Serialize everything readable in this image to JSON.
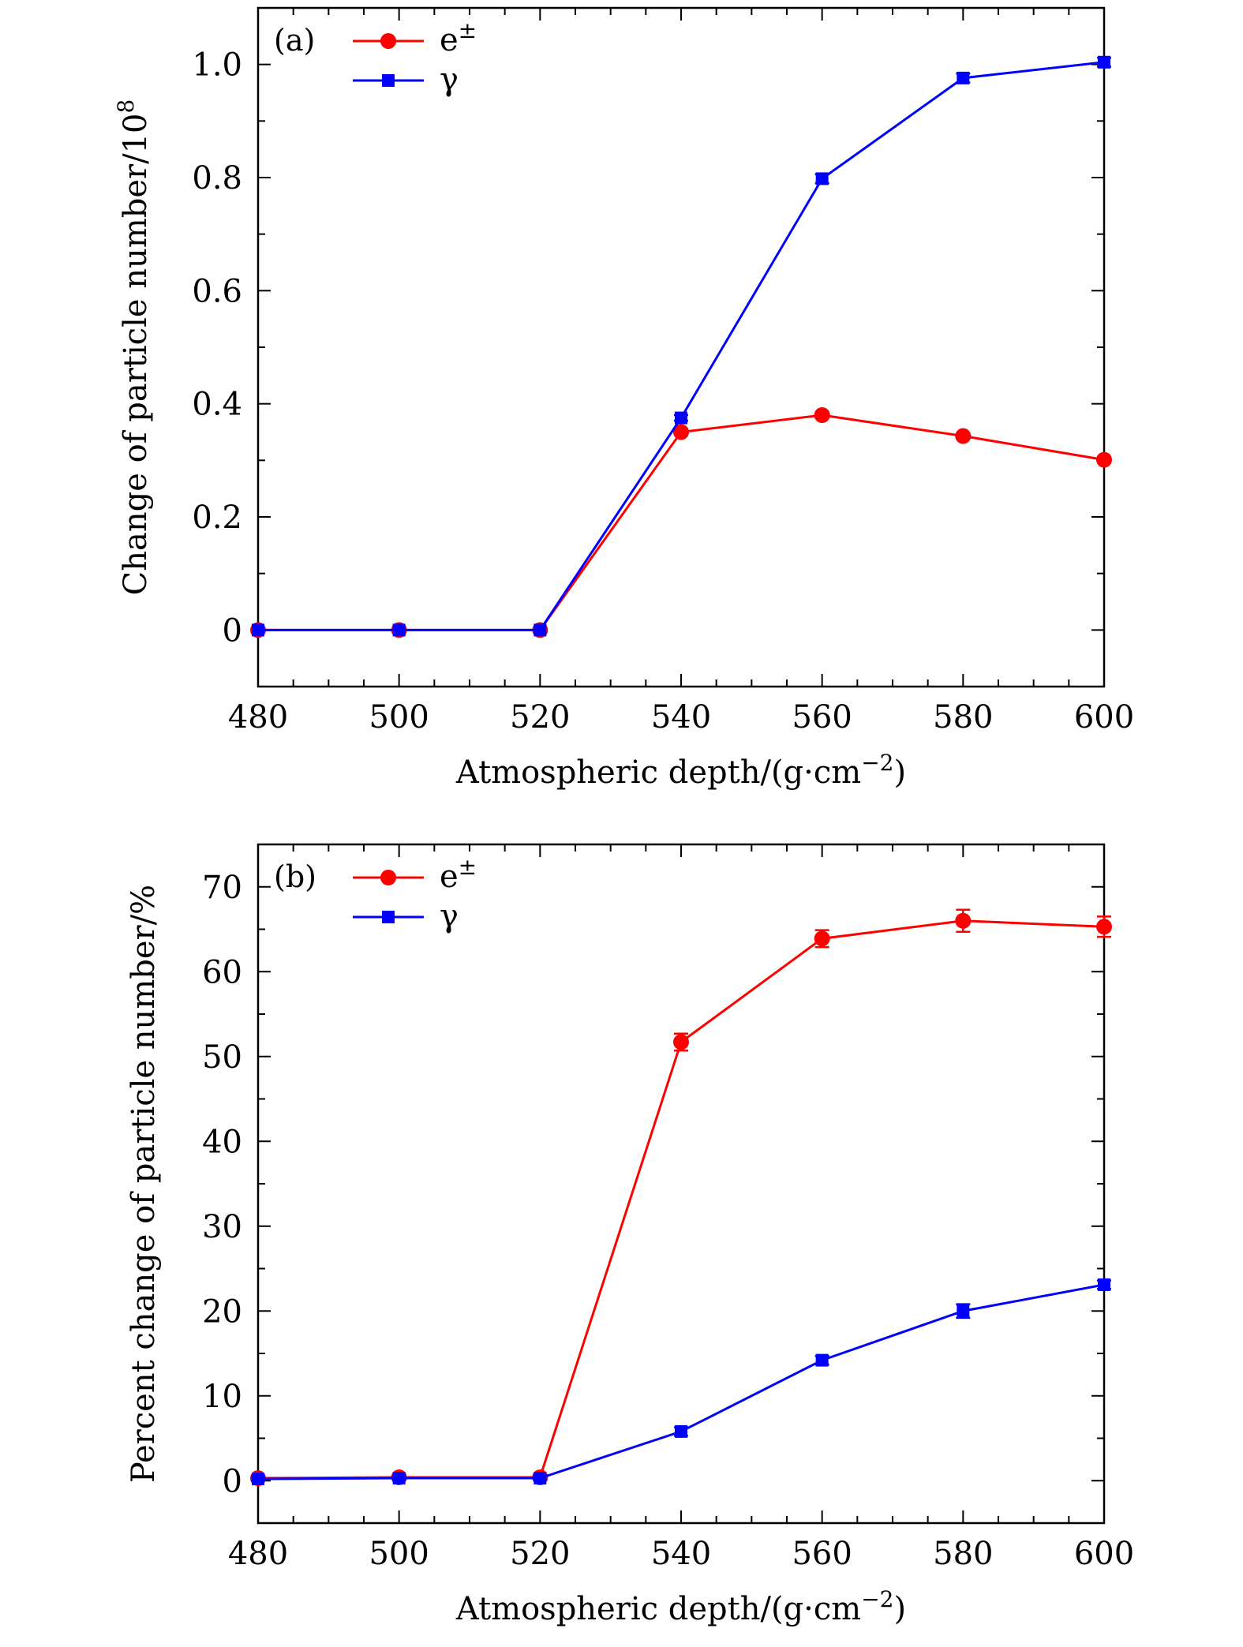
{
  "chart_data": [
    {
      "type": "line",
      "panel_label": "(a)",
      "xlabel": "Atmospheric depth/(g·cm",
      "xlabel_exp": "−2",
      "xlabel_close": ")",
      "ylabel": "Change of particle number/10",
      "ylabel_exp": "8",
      "xlim": [
        480,
        600
      ],
      "ylim": [
        -0.1,
        1.1
      ],
      "x_ticks": [
        480,
        500,
        520,
        540,
        560,
        580,
        600
      ],
      "x_tick_labels": [
        "480",
        "500",
        "520",
        "540",
        "560",
        "580",
        "600"
      ],
      "y_ticks": [
        0,
        0.2,
        0.4,
        0.6,
        0.8,
        1.0
      ],
      "y_tick_labels": [
        "0",
        "0.2",
        "0.4",
        "0.6",
        "0.8",
        "1.0"
      ],
      "legend_position": "top-left",
      "series": [
        {
          "name": "e",
          "name_sup": "±",
          "marker": "circle",
          "color": "#ff0000",
          "x": [
            480,
            500,
            520,
            540,
            560,
            580,
            600
          ],
          "values": [
            0,
            0,
            0,
            0.35,
            0.38,
            0.343,
            0.301
          ],
          "errors": [
            0,
            0,
            0,
            0.005,
            0.005,
            0.005,
            0.005
          ]
        },
        {
          "name": "γ",
          "name_sup": "",
          "marker": "square",
          "color": "#0000ff",
          "x": [
            480,
            500,
            520,
            540,
            560,
            580,
            600
          ],
          "values": [
            0,
            0,
            0,
            0.375,
            0.798,
            0.976,
            1.004
          ],
          "errors": [
            0,
            0,
            0,
            0.005,
            0.008,
            0.008,
            0.008
          ]
        }
      ]
    },
    {
      "type": "line",
      "panel_label": "(b)",
      "xlabel": "Atmospheric depth/(g·cm",
      "xlabel_exp": "−2",
      "xlabel_close": ")",
      "ylabel": "Percent change of particle number/%",
      "ylabel_exp": "",
      "xlim": [
        480,
        600
      ],
      "ylim": [
        -5,
        75
      ],
      "x_ticks": [
        480,
        500,
        520,
        540,
        560,
        580,
        600
      ],
      "x_tick_labels": [
        "480",
        "500",
        "520",
        "540",
        "560",
        "580",
        "600"
      ],
      "y_ticks": [
        0,
        10,
        20,
        30,
        40,
        50,
        60,
        70
      ],
      "y_tick_labels": [
        "0",
        "10",
        "20",
        "30",
        "40",
        "50",
        "60",
        "70"
      ],
      "legend_position": "top-left",
      "series": [
        {
          "name": "e",
          "name_sup": "±",
          "marker": "circle",
          "color": "#ff0000",
          "x": [
            480,
            500,
            520,
            540,
            560,
            580,
            600
          ],
          "values": [
            0.3,
            0.4,
            0.4,
            51.7,
            63.9,
            66.0,
            65.3
          ],
          "errors": [
            0.3,
            0.3,
            0.3,
            1.0,
            1.0,
            1.3,
            1.2
          ]
        },
        {
          "name": "γ",
          "name_sup": "",
          "marker": "square",
          "color": "#0000ff",
          "x": [
            480,
            500,
            520,
            540,
            560,
            580,
            600
          ],
          "values": [
            0.2,
            0.3,
            0.3,
            5.8,
            14.2,
            20.0,
            23.1
          ],
          "errors": [
            0.2,
            0.2,
            0.2,
            0.5,
            0.5,
            0.8,
            0.5
          ]
        }
      ]
    }
  ]
}
